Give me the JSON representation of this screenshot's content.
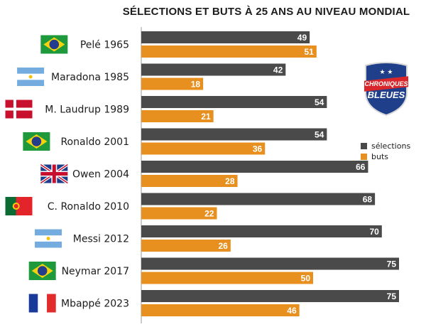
{
  "chart_data": {
    "type": "bar",
    "title": "SÉLECTIONS ET BUTS À 25 ANS AU NIVEAU MONDIAL",
    "categories": [
      "Pelé 1965",
      "Maradona 1985",
      "M. Laudrup 1989",
      "Ronaldo 2001",
      "Owen 2004",
      "C. Ronaldo 2010",
      "Messi 2012",
      "Neymar 2017",
      "Mbappé 2023"
    ],
    "flags": [
      "brazil",
      "argentina",
      "denmark",
      "brazil",
      "england",
      "portugal",
      "argentina",
      "brazil",
      "france"
    ],
    "series": [
      {
        "name": "sélections",
        "color": "#4a4a4a",
        "values": [
          49,
          42,
          54,
          54,
          66,
          68,
          70,
          75,
          75
        ]
      },
      {
        "name": "buts",
        "color": "#e8901f",
        "values": [
          51,
          18,
          21,
          36,
          28,
          22,
          26,
          50,
          46
        ]
      }
    ],
    "xlim": [
      0,
      80
    ],
    "legend_position": "right"
  },
  "logo": {
    "line1": "CHRONIQUES",
    "line2": "BLEUES",
    "stars": "★ ★"
  }
}
